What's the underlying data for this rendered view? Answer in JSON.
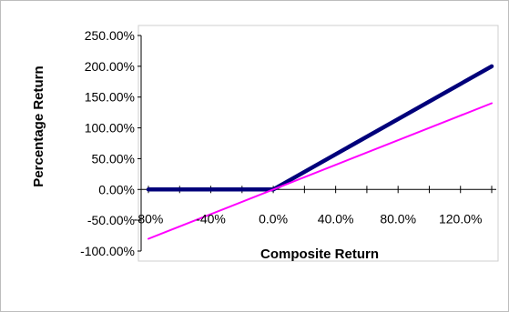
{
  "chart_data": {
    "type": "line",
    "xlabel": "Composite Return",
    "ylabel": "Percentage Return",
    "xlim": [
      -0.8,
      1.4
    ],
    "ylim": [
      -1.0,
      2.5
    ],
    "x_ticks": [
      -0.8,
      -0.4,
      0.0,
      0.4,
      0.8,
      1.2
    ],
    "x_tick_labels": [
      "-80%",
      "-40%",
      "0.0%",
      "40.0%",
      "80.0%",
      "120.0%"
    ],
    "y_ticks": [
      2.5,
      2.0,
      1.5,
      1.0,
      0.5,
      0.0,
      -0.5,
      -1.0
    ],
    "y_tick_labels": [
      "250.00%",
      "200.00%",
      "150.00%",
      "100.00%",
      "50.00%",
      "0.00%",
      "-50.00%",
      "-100.00%"
    ],
    "grid": false,
    "legend": "none",
    "series": [
      {
        "color": "#00007a",
        "x": [
          -0.8,
          0.0,
          1.4
        ],
        "y": [
          0.0,
          0.0,
          2.0
        ]
      },
      {
        "color": "#ff00ff",
        "x": [
          -0.8,
          1.4
        ],
        "y": [
          -0.8,
          1.4
        ]
      }
    ]
  }
}
